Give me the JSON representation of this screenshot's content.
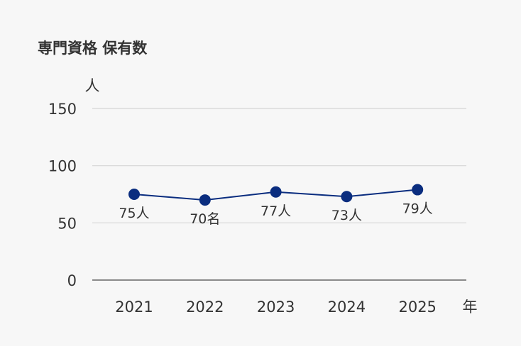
{
  "title": "専門資格 保有数",
  "chart_data": {
    "type": "line",
    "title": "専門資格 保有数",
    "xlabel": "年",
    "ylabel": "人",
    "categories": [
      "2021",
      "2022",
      "2023",
      "2024",
      "2025"
    ],
    "series": [
      {
        "values": [
          75,
          70,
          77,
          73,
          79
        ]
      }
    ],
    "data_labels": [
      "75人",
      "70名",
      "77人",
      "73人",
      "79人"
    ],
    "yticks": [
      0,
      50,
      100,
      150
    ],
    "ylim": [
      0,
      150
    ],
    "grid": true,
    "colors": {
      "line": "#0a2d7f",
      "grid": "#d6d6d6",
      "axis": "#666666"
    }
  }
}
